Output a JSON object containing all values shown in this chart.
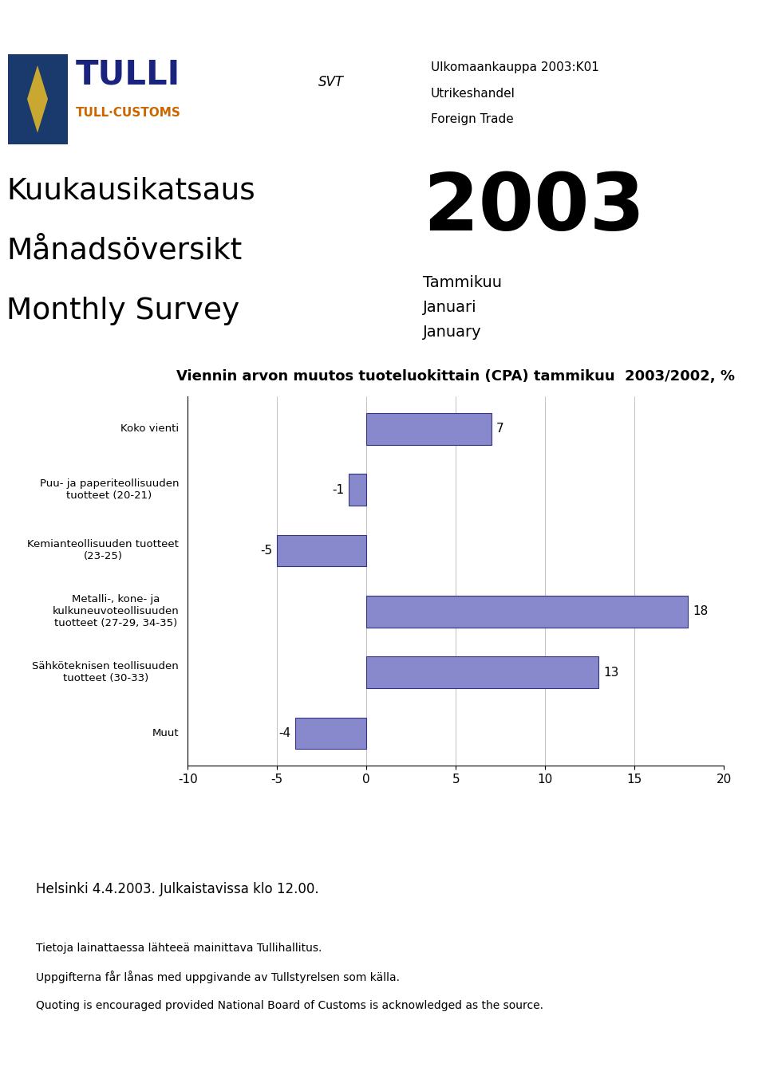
{
  "title_chart": "Viennin arvon muutos tuoteluokittain (CPA) tammikuu  2003/2002, %",
  "categories": [
    "Koko vienti",
    "Puu- ja paperiteollisuuden\ntuotteet (20-21)",
    "Kemianteollisuuden tuotteet\n(23-25)",
    "Metalli-, kone- ja\nkulkuneuvoteollisuuden\ntuotteet (27-29, 34-35)",
    "Sähköteknisen teollisuuden\ntuotteet (30-33)",
    "Muut"
  ],
  "values": [
    7,
    -1,
    -5,
    18,
    13,
    -4
  ],
  "bar_color": "#8888cc",
  "bar_edge_color": "#333388",
  "xlim": [
    -10,
    20
  ],
  "xticks": [
    -10,
    -5,
    0,
    5,
    10,
    15,
    20
  ],
  "background_color": "#ffffff",
  "header_top_color": "#1a237e",
  "header_stripe_color": "#b0b0b8",
  "header_left_text_line1": "Kuukausikatsaus",
  "header_left_text_line2": "Månadsöversikt",
  "header_left_text_line3": "Monthly Survey",
  "header_year": "2003",
  "header_month_line1": "Tammikuu",
  "header_month_line2": "Januari",
  "header_month_line3": "January",
  "svt_text": "SVT",
  "header_right_text_line1": "Ulkomaankauppa 2003:K01",
  "header_right_text_line2": "Utrikeshandel",
  "header_right_text_line3": "Foreign Trade",
  "footer_line1": "Helsinki 4.4.2003. Julkaistavissa klo 12.00.",
  "footer_line2": "Tietoja lainattaessa lähteeä mainittava Tullihallitus.",
  "footer_line3": "Uppgifterna får lånas med uppgivande av Tullstyrelsen som källa.",
  "footer_line4": "Quoting is encouraged provided National Board of Customs is acknowledged as the source.",
  "tulli_text": "TULLI",
  "tulli_sub": "TULL·CUSTOMS",
  "logo_bg_color": "#1a3a6e",
  "logo_emblem_color": "#c8a830"
}
